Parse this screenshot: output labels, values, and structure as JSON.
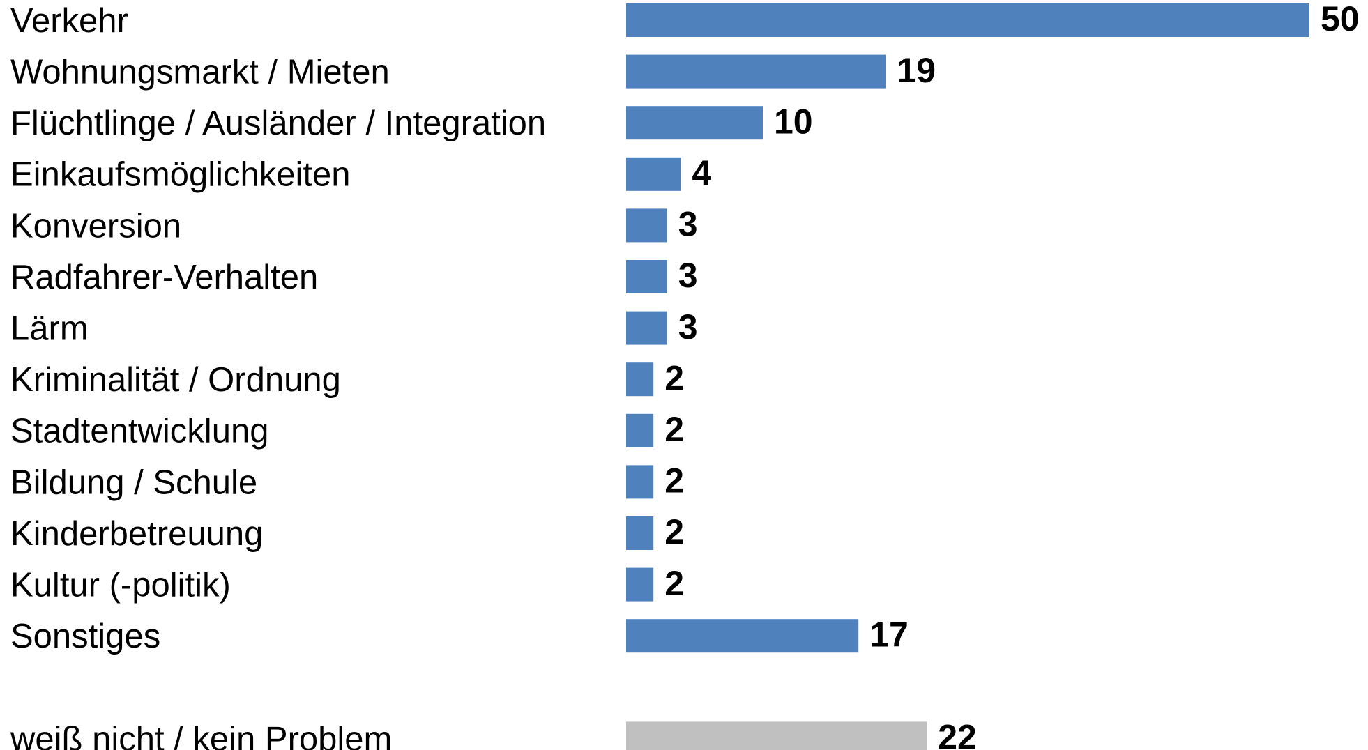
{
  "chart_data": {
    "type": "barh",
    "categories": [
      "Verkehr",
      "Wohnungsmarkt / Mieten",
      "Flüchtlinge / Ausländer / Integration",
      "Einkaufsmöglichkeiten",
      "Konversion",
      "Radfahrer-Verhalten",
      "Lärm",
      "Kriminalität / Ordnung",
      "Stadtentwicklung",
      "Bildung / Schule",
      "Kinderbetreuung",
      "Kultur (-politik)",
      "Sonstiges",
      "weiß nicht / kein Problem"
    ],
    "values": [
      50,
      19,
      10,
      4,
      3,
      3,
      3,
      2,
      2,
      2,
      2,
      2,
      17,
      22
    ],
    "colors": [
      "#4f81bd",
      "#4f81bd",
      "#4f81bd",
      "#4f81bd",
      "#4f81bd",
      "#4f81bd",
      "#4f81bd",
      "#4f81bd",
      "#4f81bd",
      "#4f81bd",
      "#4f81bd",
      "#4f81bd",
      "#4f81bd",
      "#c0c0c0"
    ]
  }
}
